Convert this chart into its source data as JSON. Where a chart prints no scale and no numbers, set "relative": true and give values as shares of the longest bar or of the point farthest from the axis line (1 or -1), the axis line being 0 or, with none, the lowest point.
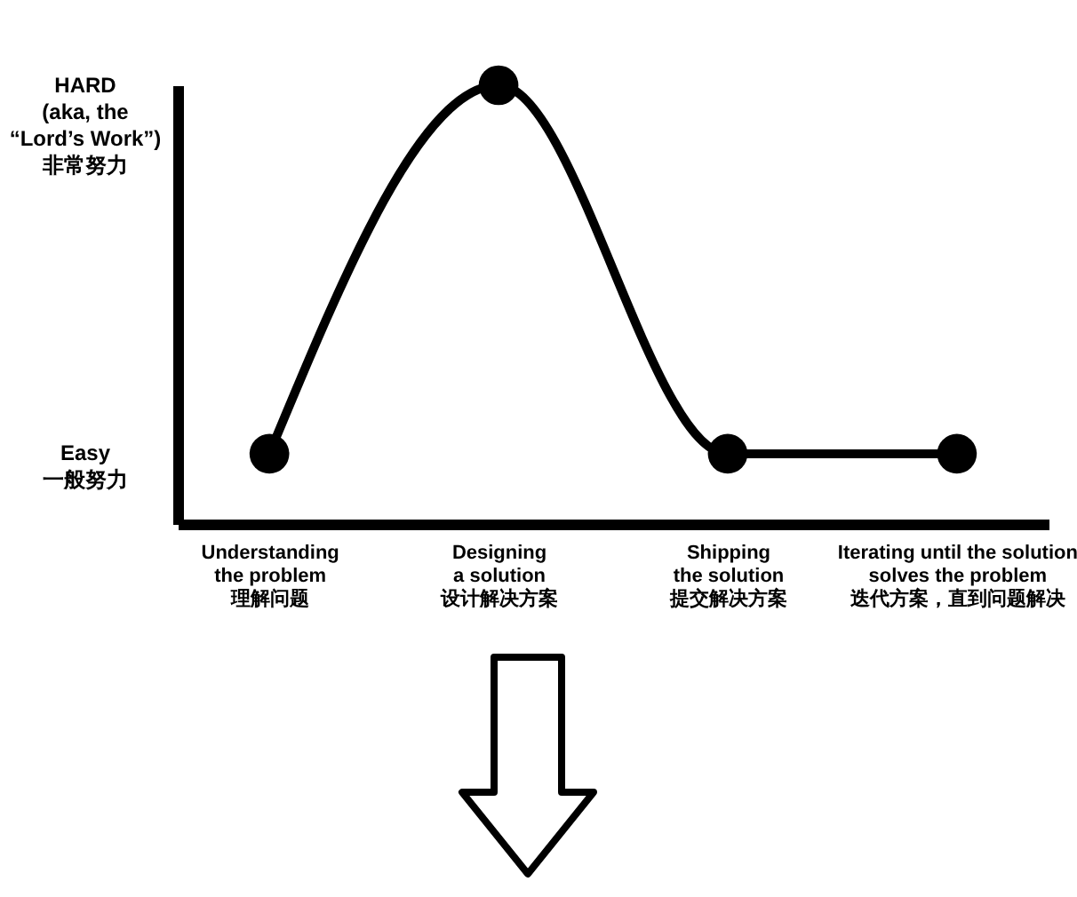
{
  "chart_data": {
    "type": "line",
    "relative": true,
    "categories": [
      "Understanding\nthe problem\n理解问题",
      "Designing\na solution\n设计解决方案",
      "Shipping\nthe solution\n提交解决方案",
      "Iterating until the solution\nsolves the problem\n迭代方案，直到问题解决"
    ],
    "values": [
      0.16,
      1,
      0.16,
      0.16
    ],
    "color": "#000000",
    "marker": "circle",
    "line_style": "solid",
    "grid": false,
    "annotations": [
      "Easy\n一般努力",
      "HARD\n(aka, the\n“Lord’s Work”)\n非常努力"
    ]
  }
}
